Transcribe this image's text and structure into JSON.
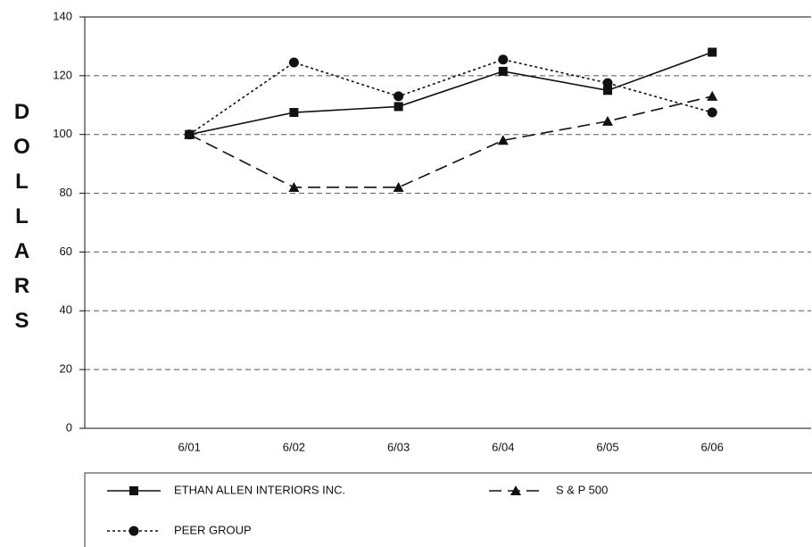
{
  "chart_data": {
    "type": "line",
    "y_label": "DOLLARS",
    "categories": [
      "6/01",
      "6/02",
      "6/03",
      "6/04",
      "6/05",
      "6/06"
    ],
    "series": [
      {
        "name": "ETHAN ALLEN INTERIORS INC.",
        "color": "#111111",
        "marker": "square",
        "line_style": "solid",
        "values": [
          100,
          107.5,
          109.5,
          121.5,
          115,
          128
        ]
      },
      {
        "name": "S & P 500",
        "color": "#111111",
        "marker": "triangle",
        "line_style": "dashed",
        "values": [
          100,
          82,
          82,
          98,
          104.5,
          113
        ]
      },
      {
        "name": "PEER GROUP",
        "color": "#111111",
        "marker": "circle",
        "line_style": "dotted",
        "values": [
          100,
          124.5,
          113,
          125.5,
          117.5,
          107.5
        ]
      }
    ],
    "ylim": [
      0,
      140
    ],
    "yticks": [
      0,
      20,
      40,
      60,
      80,
      100,
      120,
      140
    ],
    "grid": true
  }
}
